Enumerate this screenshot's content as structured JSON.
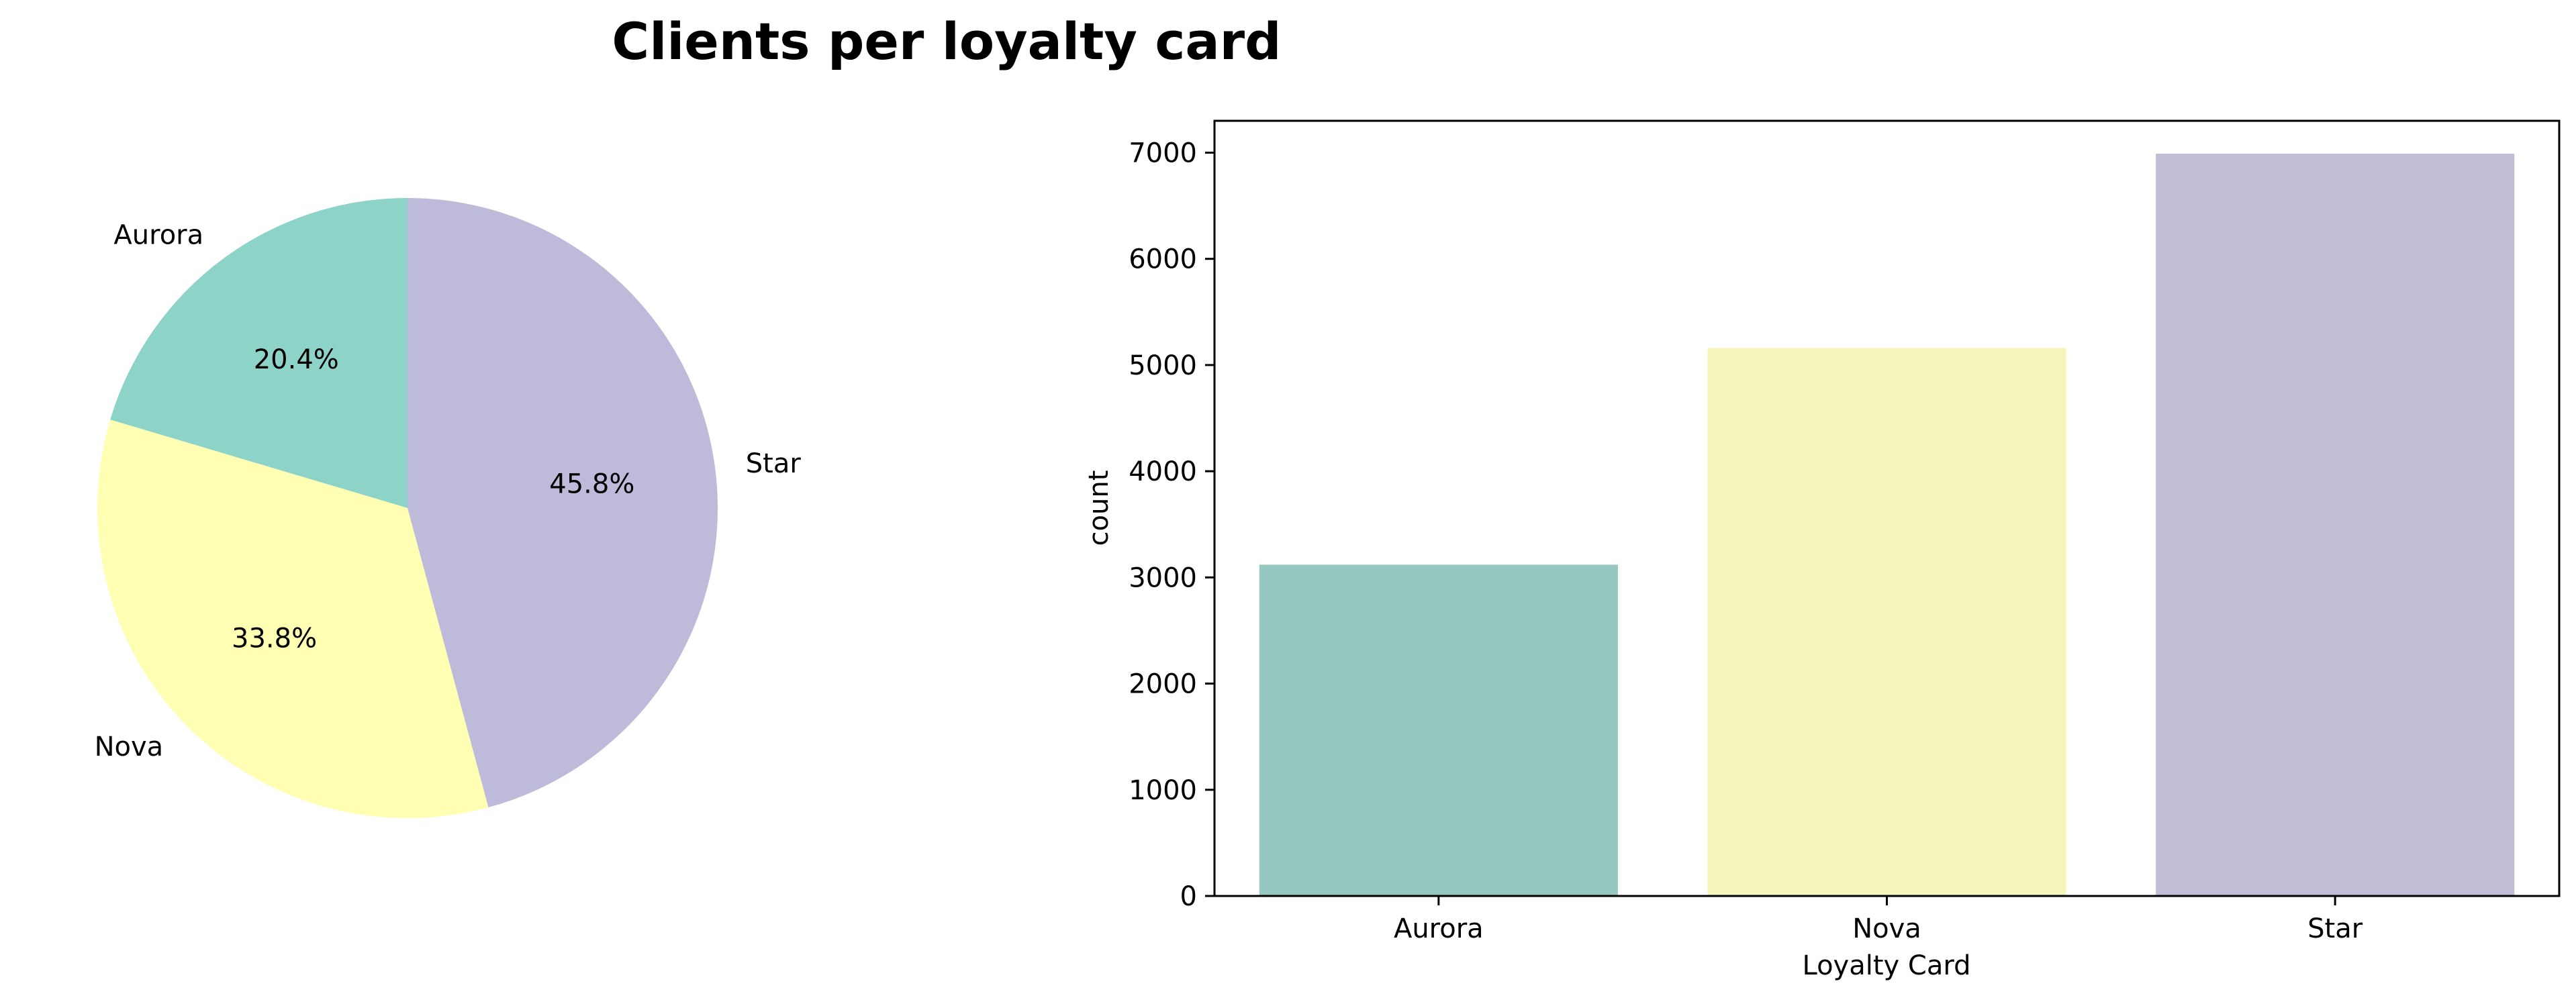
{
  "title": "Clients per loyalty card",
  "chart_data": [
    {
      "type": "pie",
      "labels": [
        "Aurora",
        "Nova",
        "Star"
      ],
      "values": [
        20.4,
        33.8,
        45.8
      ],
      "pct_labels": [
        "20.4%",
        "33.8%",
        "45.8%"
      ],
      "colors": [
        "#8dd3c7",
        "#ffffb3",
        "#bebada"
      ],
      "start_angle": 90,
      "direction": "counterclockwise"
    },
    {
      "type": "bar",
      "categories": [
        "Aurora",
        "Nova",
        "Star"
      ],
      "values": [
        3120,
        5160,
        6990
      ],
      "colors": [
        "#96c8c1",
        "#f5f5bb",
        "#c2bdd6"
      ],
      "xlabel": "Loyalty Card",
      "ylabel": "count",
      "ylim": [
        0,
        7300
      ],
      "yticks": [
        0,
        1000,
        2000,
        3000,
        4000,
        5000,
        6000,
        7000
      ],
      "grid": false
    }
  ]
}
